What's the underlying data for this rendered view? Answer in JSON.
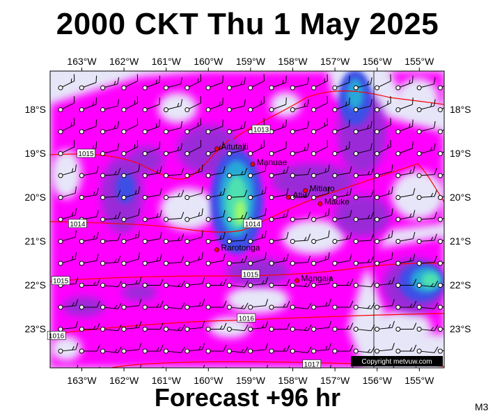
{
  "title": "2000 CKT Thu 1 May 2025",
  "footer": "Forecast +96 hr",
  "model_code": "M3",
  "copyright": "Copyright metvuw.com",
  "lon_labels": [
    "163°W",
    "162°W",
    "161°W",
    "160°W",
    "159°W",
    "158°W",
    "157°W",
    "156°W",
    "155°W"
  ],
  "lat_labels": [
    "18°S",
    "19°S",
    "20°S",
    "21°S",
    "22°S",
    "23°S"
  ],
  "places": [
    {
      "name": "Aitutaki",
      "lon": -159.8,
      "lat": -18.9
    },
    {
      "name": "Manuae",
      "lon": -158.95,
      "lat": -19.25
    },
    {
      "name": "Atiu",
      "lon": -158.1,
      "lat": -20.0
    },
    {
      "name": "Mitiaro",
      "lon": -157.7,
      "lat": -19.85
    },
    {
      "name": "Mauke",
      "lon": -157.35,
      "lat": -20.15
    },
    {
      "name": "Rarotonga",
      "lon": -159.8,
      "lat": -21.2
    },
    {
      "name": "Mangaia",
      "lon": -157.9,
      "lat": -21.9
    }
  ],
  "isobar_labels": [
    {
      "text": "1013",
      "lon": -158.75,
      "lat": -18.45
    },
    {
      "text": "1015",
      "lon": -162.9,
      "lat": -19.0
    },
    {
      "text": "1014",
      "lon": -163.1,
      "lat": -20.6
    },
    {
      "text": "1014",
      "lon": -158.95,
      "lat": -20.6
    },
    {
      "text": "1015",
      "lon": -163.5,
      "lat": -21.9
    },
    {
      "text": "1015",
      "lon": -159.0,
      "lat": -21.75
    },
    {
      "text": "1016",
      "lon": -159.1,
      "lat": -22.75
    },
    {
      "text": "1016",
      "lon": -163.6,
      "lat": -23.15
    },
    {
      "text": "1017",
      "lon": -157.55,
      "lat": -23.8
    }
  ],
  "colors": {
    "rain_light": "#ff00ff",
    "rain_mid": "#b000e0",
    "rain_purple": "#7a3cc8",
    "rain_blue": "#3050e0",
    "rain_cyan": "#30c8c8",
    "rain_green": "#60f0a0",
    "background": "#e6e6f8",
    "isobar": "#ff0000"
  }
}
